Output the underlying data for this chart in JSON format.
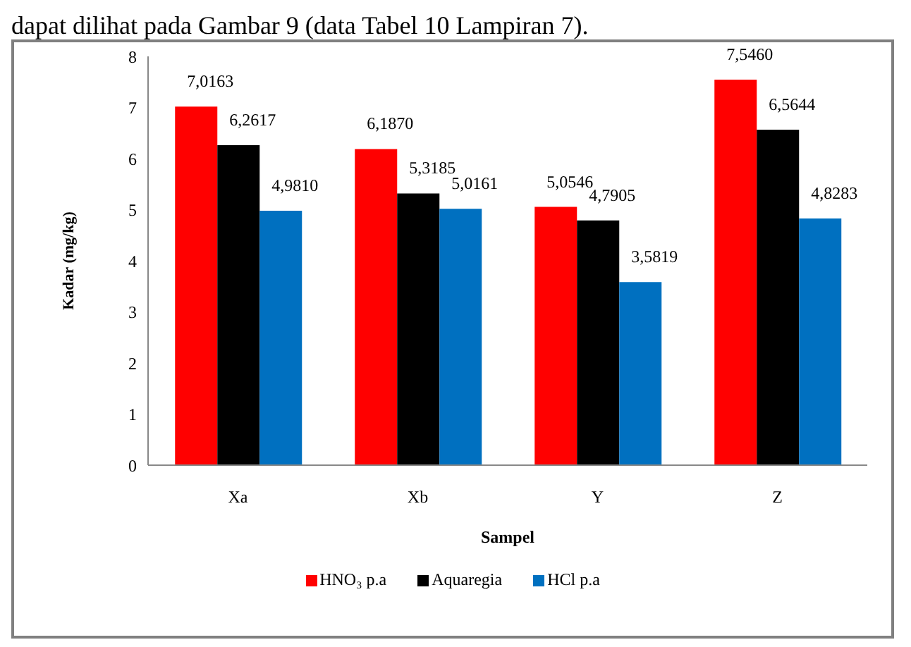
{
  "chart_data": {
    "type": "bar",
    "xlabel": "Sampel",
    "ylabel": "Kadar (mg/kg)",
    "annotations": [
      "dapat dilihat pada Gambar 9 (data Tabel 10 Lampiran 7)."
    ],
    "categories": [
      "Xa",
      "Xb",
      "Y",
      "Z"
    ],
    "series": [
      {
        "name": "HNO₃ p.a",
        "color": "#ff0000",
        "values": [
          7.0163,
          6.187,
          5.0546,
          7.546
        ],
        "value_labels": [
          "7,0163",
          "6,1870",
          "5,0546",
          "7,5460"
        ]
      },
      {
        "name": "Aquaregia",
        "color": "#000000",
        "values": [
          6.2617,
          5.3185,
          4.7905,
          6.5644
        ],
        "value_labels": [
          "6,2617",
          "5,3185",
          "4,7905",
          "6,5644"
        ]
      },
      {
        "name": "HCl p.a",
        "color": "#0070c0",
        "values": [
          4.981,
          5.0161,
          3.5819,
          4.8283
        ],
        "value_labels": [
          "4,9810",
          "5,0161",
          "3,5819",
          "4,8283"
        ]
      }
    ],
    "ylim": [
      0,
      8
    ],
    "yticks": [
      0,
      1,
      2,
      3,
      4,
      5,
      6,
      7,
      8
    ],
    "grid": false,
    "legend": "bottom"
  }
}
